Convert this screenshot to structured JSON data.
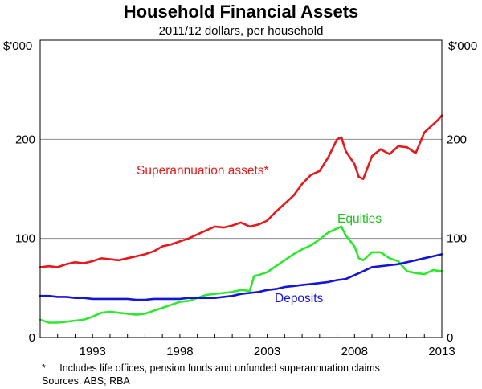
{
  "chart_data": {
    "type": "line",
    "title": "Household Financial Assets",
    "subtitle": "2011/12 dollars, per household",
    "left_unit": "$'000",
    "right_unit": "$'000",
    "ylim": [
      0,
      300
    ],
    "yticks": [
      0,
      100,
      200
    ],
    "xlim": [
      1990.0,
      2013.0
    ],
    "xticks": [
      1993,
      1998,
      2003,
      2008,
      2013
    ],
    "grid": "horizontal",
    "series": [
      {
        "name": "Superannuation assets*",
        "color": "#e41a1c",
        "x": [
          1990.0,
          1990.5,
          1991.0,
          1991.5,
          1992.0,
          1992.5,
          1993.0,
          1993.5,
          1994.0,
          1994.5,
          1995.0,
          1995.5,
          1996.0,
          1996.5,
          1997.0,
          1997.5,
          1998.0,
          1998.5,
          1999.0,
          1999.5,
          2000.0,
          2000.5,
          2001.0,
          2001.5,
          2002.0,
          2002.5,
          2003.0,
          2003.5,
          2004.0,
          2004.5,
          2005.0,
          2005.5,
          2006.0,
          2006.5,
          2007.0,
          2007.25,
          2007.5,
          2008.0,
          2008.25,
          2008.5,
          2009.0,
          2009.5,
          2010.0,
          2010.5,
          2011.0,
          2011.5,
          2012.0,
          2012.5,
          2012.75,
          2013.0
        ],
        "y": [
          71,
          72,
          71,
          74,
          76,
          75,
          77,
          80,
          79,
          78,
          80,
          82,
          84,
          87,
          92,
          94,
          97,
          100,
          104,
          108,
          112,
          111,
          113,
          116,
          112,
          114,
          118,
          127,
          135,
          143,
          155,
          164,
          168,
          182,
          200,
          202,
          188,
          175,
          162,
          160,
          183,
          190,
          185,
          193,
          192,
          186,
          207,
          215,
          219,
          224
        ]
      },
      {
        "name": "Equities",
        "color": "#2ee82e",
        "x": [
          1990.0,
          1990.5,
          1991.0,
          1991.5,
          1992.0,
          1992.5,
          1993.0,
          1993.5,
          1994.0,
          1994.5,
          1995.0,
          1995.5,
          1996.0,
          1996.5,
          1997.0,
          1997.5,
          1998.0,
          1998.5,
          1999.0,
          1999.5,
          2000.0,
          2000.5,
          2001.0,
          2001.5,
          2002.0,
          2002.25,
          2002.5,
          2003.0,
          2003.5,
          2004.0,
          2004.5,
          2005.0,
          2005.5,
          2006.0,
          2006.5,
          2007.0,
          2007.25,
          2007.5,
          2008.0,
          2008.25,
          2008.5,
          2009.0,
          2009.5,
          2010.0,
          2010.5,
          2011.0,
          2011.5,
          2012.0,
          2012.5,
          2013.0
        ],
        "y": [
          18,
          15,
          15,
          16,
          17,
          18,
          21,
          25,
          26,
          25,
          24,
          23,
          24,
          27,
          30,
          33,
          36,
          37,
          40,
          43,
          44,
          45,
          46,
          48,
          47,
          62,
          63,
          66,
          72,
          78,
          84,
          89,
          93,
          99,
          106,
          110,
          112,
          103,
          92,
          80,
          78,
          86,
          86,
          80,
          77,
          67,
          65,
          64,
          68,
          67
        ]
      },
      {
        "name": "Deposits",
        "color": "#1515d8",
        "x": [
          1990.0,
          1990.5,
          1991.0,
          1991.5,
          1992.0,
          1992.5,
          1993.0,
          1993.5,
          1994.0,
          1994.5,
          1995.0,
          1995.5,
          1996.0,
          1996.5,
          1997.0,
          1997.5,
          1998.0,
          1998.5,
          1999.0,
          1999.5,
          2000.0,
          2000.5,
          2001.0,
          2001.5,
          2002.0,
          2002.5,
          2003.0,
          2003.5,
          2004.0,
          2004.5,
          2005.0,
          2005.5,
          2006.0,
          2006.5,
          2007.0,
          2007.5,
          2008.0,
          2008.5,
          2009.0,
          2009.5,
          2010.0,
          2010.5,
          2011.0,
          2011.5,
          2012.0,
          2012.5,
          2013.0
        ],
        "y": [
          42,
          42,
          41,
          41,
          40,
          40,
          39,
          39,
          39,
          39,
          39,
          38,
          38,
          39,
          39,
          39,
          39,
          40,
          40,
          40,
          40,
          41,
          42,
          44,
          45,
          46,
          48,
          49,
          51,
          52,
          53,
          54,
          55,
          56,
          58,
          59,
          63,
          67,
          71,
          72,
          73,
          74,
          76,
          78,
          80,
          82,
          84
        ]
      }
    ],
    "footnote": "*     Includes life offices, pension funds and unfunded superannuation claims",
    "sources": "Sources: ABS; RBA"
  }
}
